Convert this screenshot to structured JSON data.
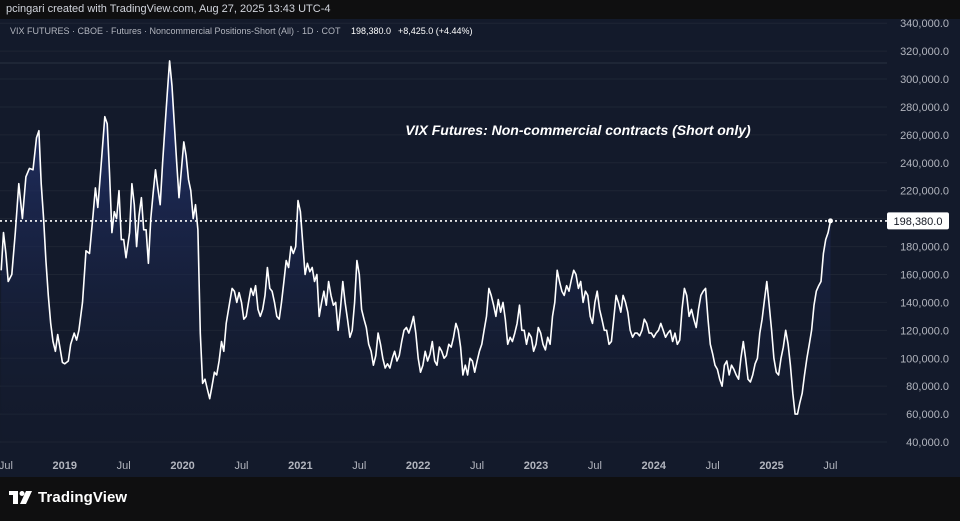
{
  "header": {
    "attribution": "pcingari created with TradingView.com, Aug 27, 2025 13:43 UTC-4"
  },
  "legend": {
    "symbol": "VIX FUTURES · CBOE · Futures · Noncommercial Positions-Short (All) · 1D · COT",
    "last_value": "198,380.0",
    "change": "+8,425.0 (+4.44%)"
  },
  "annotation": "VIX Futures: Non-commercial contracts (Short only)",
  "price_label": "198,380.0",
  "brand": "TradingView",
  "colors": {
    "background": "#131a2b",
    "line": "#ffffff",
    "area_top": "#1e2d63",
    "text_muted": "#b2b5be",
    "grid": "#1e2534"
  },
  "chart_data": {
    "type": "area",
    "title": "VIX Futures: Non-commercial contracts (Short only)",
    "series_name": "VIX FUTURES · CBOE · Futures · Noncommercial Positions-Short (All)",
    "ylim": [
      35000,
      343000
    ],
    "y_ticks": [
      "40,000.0",
      "60,000.0",
      "80,000.0",
      "100,000.0",
      "120,000.0",
      "140,000.0",
      "160,000.0",
      "180,000.0",
      "200,000.0",
      "220,000.0",
      "240,000.0",
      "260,000.0",
      "280,000.0",
      "300,000.0",
      "320,000.0",
      "340,000.0"
    ],
    "y_tick_values": [
      40000,
      60000,
      80000,
      100000,
      120000,
      140000,
      160000,
      180000,
      200000,
      220000,
      240000,
      260000,
      280000,
      300000,
      320000,
      340000
    ],
    "x_ticks": [
      "Jul",
      "2019",
      "Jul",
      "2020",
      "Jul",
      "2021",
      "Jul",
      "2022",
      "Jul",
      "2023",
      "Jul",
      "2024",
      "Jul",
      "2025",
      "Jul"
    ],
    "x_tick_dates": [
      2018.5,
      2019.0,
      2019.5,
      2020.0,
      2020.5,
      2021.0,
      2021.5,
      2022.0,
      2022.5,
      2023.0,
      2023.5,
      2024.0,
      2024.5,
      2025.0,
      2025.5
    ],
    "x_range": [
      2018.45,
      2025.98
    ],
    "last_value": 198380,
    "points": [
      [
        2018.46,
        163000
      ],
      [
        2018.48,
        190000
      ],
      [
        2018.5,
        175000
      ],
      [
        2018.52,
        155000
      ],
      [
        2018.55,
        160000
      ],
      [
        2018.58,
        190000
      ],
      [
        2018.61,
        225000
      ],
      [
        2018.64,
        200000
      ],
      [
        2018.67,
        230000
      ],
      [
        2018.7,
        236000
      ],
      [
        2018.73,
        235000
      ],
      [
        2018.76,
        258000
      ],
      [
        2018.78,
        263000
      ],
      [
        2018.8,
        225000
      ],
      [
        2018.82,
        200000
      ],
      [
        2018.84,
        170000
      ],
      [
        2018.86,
        145000
      ],
      [
        2018.88,
        125000
      ],
      [
        2018.9,
        112000
      ],
      [
        2018.92,
        105000
      ],
      [
        2018.94,
        117000
      ],
      [
        2018.96,
        107000
      ],
      [
        2018.98,
        97000
      ],
      [
        2019.0,
        96000
      ],
      [
        2019.03,
        98000
      ],
      [
        2019.05,
        110000
      ],
      [
        2019.08,
        118000
      ],
      [
        2019.1,
        113000
      ],
      [
        2019.12,
        120000
      ],
      [
        2019.15,
        140000
      ],
      [
        2019.18,
        177000
      ],
      [
        2019.21,
        175000
      ],
      [
        2019.24,
        203000
      ],
      [
        2019.26,
        222000
      ],
      [
        2019.28,
        208000
      ],
      [
        2019.31,
        240000
      ],
      [
        2019.34,
        273000
      ],
      [
        2019.36,
        268000
      ],
      [
        2019.38,
        233000
      ],
      [
        2019.4,
        190000
      ],
      [
        2019.42,
        205000
      ],
      [
        2019.44,
        200000
      ],
      [
        2019.46,
        220000
      ],
      [
        2019.48,
        185000
      ],
      [
        2019.5,
        185000
      ],
      [
        2019.52,
        172000
      ],
      [
        2019.55,
        190000
      ],
      [
        2019.57,
        225000
      ],
      [
        2019.59,
        210000
      ],
      [
        2019.61,
        180000
      ],
      [
        2019.63,
        202000
      ],
      [
        2019.65,
        215000
      ],
      [
        2019.67,
        192000
      ],
      [
        2019.69,
        192000
      ],
      [
        2019.71,
        168000
      ],
      [
        2019.73,
        200000
      ],
      [
        2019.75,
        218000
      ],
      [
        2019.77,
        235000
      ],
      [
        2019.79,
        222000
      ],
      [
        2019.81,
        210000
      ],
      [
        2019.83,
        240000
      ],
      [
        2019.85,
        265000
      ],
      [
        2019.87,
        290000
      ],
      [
        2019.89,
        313000
      ],
      [
        2019.91,
        295000
      ],
      [
        2019.93,
        268000
      ],
      [
        2019.95,
        240000
      ],
      [
        2019.97,
        215000
      ],
      [
        2019.99,
        235000
      ],
      [
        2020.01,
        255000
      ],
      [
        2020.03,
        245000
      ],
      [
        2020.05,
        228000
      ],
      [
        2020.07,
        220000
      ],
      [
        2020.09,
        200000
      ],
      [
        2020.11,
        210000
      ],
      [
        2020.13,
        192000
      ],
      [
        2020.15,
        118000
      ],
      [
        2020.17,
        82000
      ],
      [
        2020.19,
        85000
      ],
      [
        2020.21,
        78000
      ],
      [
        2020.23,
        71000
      ],
      [
        2020.25,
        80000
      ],
      [
        2020.27,
        90000
      ],
      [
        2020.29,
        88000
      ],
      [
        2020.31,
        98000
      ],
      [
        2020.33,
        112000
      ],
      [
        2020.35,
        105000
      ],
      [
        2020.37,
        125000
      ],
      [
        2020.4,
        140000
      ],
      [
        2020.42,
        150000
      ],
      [
        2020.44,
        148000
      ],
      [
        2020.46,
        140000
      ],
      [
        2020.48,
        147000
      ],
      [
        2020.5,
        140000
      ],
      [
        2020.52,
        128000
      ],
      [
        2020.54,
        130000
      ],
      [
        2020.56,
        140000
      ],
      [
        2020.58,
        150000
      ],
      [
        2020.6,
        145000
      ],
      [
        2020.62,
        152000
      ],
      [
        2020.64,
        135000
      ],
      [
        2020.66,
        130000
      ],
      [
        2020.68,
        135000
      ],
      [
        2020.7,
        145000
      ],
      [
        2020.72,
        165000
      ],
      [
        2020.74,
        150000
      ],
      [
        2020.76,
        148000
      ],
      [
        2020.78,
        140000
      ],
      [
        2020.8,
        130000
      ],
      [
        2020.82,
        128000
      ],
      [
        2020.84,
        140000
      ],
      [
        2020.86,
        155000
      ],
      [
        2020.88,
        170000
      ],
      [
        2020.9,
        165000
      ],
      [
        2020.92,
        180000
      ],
      [
        2020.94,
        175000
      ],
      [
        2020.96,
        180000
      ],
      [
        2020.98,
        213000
      ],
      [
        2021.0,
        205000
      ],
      [
        2021.02,
        183000
      ],
      [
        2021.04,
        160000
      ],
      [
        2021.06,
        168000
      ],
      [
        2021.08,
        162000
      ],
      [
        2021.1,
        165000
      ],
      [
        2021.12,
        155000
      ],
      [
        2021.14,
        160000
      ],
      [
        2021.16,
        130000
      ],
      [
        2021.18,
        140000
      ],
      [
        2021.2,
        148000
      ],
      [
        2021.22,
        138000
      ],
      [
        2021.24,
        155000
      ],
      [
        2021.26,
        145000
      ],
      [
        2021.28,
        138000
      ],
      [
        2021.3,
        140000
      ],
      [
        2021.32,
        120000
      ],
      [
        2021.34,
        135000
      ],
      [
        2021.36,
        155000
      ],
      [
        2021.38,
        140000
      ],
      [
        2021.4,
        128000
      ],
      [
        2021.42,
        115000
      ],
      [
        2021.44,
        120000
      ],
      [
        2021.46,
        140000
      ],
      [
        2021.48,
        170000
      ],
      [
        2021.5,
        160000
      ],
      [
        2021.52,
        135000
      ],
      [
        2021.54,
        128000
      ],
      [
        2021.56,
        122000
      ],
      [
        2021.58,
        110000
      ],
      [
        2021.6,
        105000
      ],
      [
        2021.62,
        95000
      ],
      [
        2021.64,
        102000
      ],
      [
        2021.66,
        118000
      ],
      [
        2021.68,
        110000
      ],
      [
        2021.7,
        100000
      ],
      [
        2021.72,
        93000
      ],
      [
        2021.74,
        96000
      ],
      [
        2021.76,
        93000
      ],
      [
        2021.78,
        100000
      ],
      [
        2021.8,
        105000
      ],
      [
        2021.82,
        98000
      ],
      [
        2021.84,
        102000
      ],
      [
        2021.86,
        112000
      ],
      [
        2021.88,
        120000
      ],
      [
        2021.9,
        122000
      ],
      [
        2021.92,
        118000
      ],
      [
        2021.94,
        123000
      ],
      [
        2021.96,
        130000
      ],
      [
        2021.98,
        118000
      ],
      [
        2022.0,
        100000
      ],
      [
        2022.02,
        90000
      ],
      [
        2022.04,
        95000
      ],
      [
        2022.06,
        105000
      ],
      [
        2022.08,
        98000
      ],
      [
        2022.1,
        103000
      ],
      [
        2022.12,
        112000
      ],
      [
        2022.14,
        98000
      ],
      [
        2022.16,
        95000
      ],
      [
        2022.18,
        108000
      ],
      [
        2022.2,
        105000
      ],
      [
        2022.22,
        100000
      ],
      [
        2022.24,
        102000
      ],
      [
        2022.26,
        110000
      ],
      [
        2022.28,
        108000
      ],
      [
        2022.3,
        115000
      ],
      [
        2022.32,
        125000
      ],
      [
        2022.34,
        120000
      ],
      [
        2022.36,
        108000
      ],
      [
        2022.38,
        88000
      ],
      [
        2022.4,
        95000
      ],
      [
        2022.42,
        88000
      ],
      [
        2022.44,
        100000
      ],
      [
        2022.46,
        98000
      ],
      [
        2022.48,
        90000
      ],
      [
        2022.5,
        98000
      ],
      [
        2022.52,
        105000
      ],
      [
        2022.54,
        110000
      ],
      [
        2022.56,
        120000
      ],
      [
        2022.58,
        130000
      ],
      [
        2022.6,
        150000
      ],
      [
        2022.62,
        145000
      ],
      [
        2022.64,
        138000
      ],
      [
        2022.66,
        130000
      ],
      [
        2022.68,
        142000
      ],
      [
        2022.7,
        133000
      ],
      [
        2022.72,
        140000
      ],
      [
        2022.74,
        128000
      ],
      [
        2022.76,
        110000
      ],
      [
        2022.78,
        115000
      ],
      [
        2022.8,
        112000
      ],
      [
        2022.82,
        118000
      ],
      [
        2022.84,
        125000
      ],
      [
        2022.86,
        138000
      ],
      [
        2022.88,
        120000
      ],
      [
        2022.9,
        120000
      ],
      [
        2022.92,
        110000
      ],
      [
        2022.94,
        118000
      ],
      [
        2022.96,
        115000
      ],
      [
        2022.98,
        105000
      ],
      [
        2023.0,
        110000
      ],
      [
        2023.02,
        122000
      ],
      [
        2023.04,
        118000
      ],
      [
        2023.06,
        110000
      ],
      [
        2023.08,
        106000
      ],
      [
        2023.1,
        115000
      ],
      [
        2023.12,
        110000
      ],
      [
        2023.14,
        130000
      ],
      [
        2023.16,
        140000
      ],
      [
        2023.18,
        163000
      ],
      [
        2023.2,
        155000
      ],
      [
        2023.22,
        148000
      ],
      [
        2023.24,
        145000
      ],
      [
        2023.26,
        152000
      ],
      [
        2023.28,
        148000
      ],
      [
        2023.3,
        156000
      ],
      [
        2023.32,
        163000
      ],
      [
        2023.34,
        160000
      ],
      [
        2023.36,
        150000
      ],
      [
        2023.38,
        155000
      ],
      [
        2023.4,
        140000
      ],
      [
        2023.42,
        148000
      ],
      [
        2023.44,
        145000
      ],
      [
        2023.46,
        130000
      ],
      [
        2023.48,
        125000
      ],
      [
        2023.5,
        140000
      ],
      [
        2023.52,
        148000
      ],
      [
        2023.54,
        135000
      ],
      [
        2023.56,
        128000
      ],
      [
        2023.58,
        120000
      ],
      [
        2023.6,
        120000
      ],
      [
        2023.62,
        110000
      ],
      [
        2023.64,
        112000
      ],
      [
        2023.66,
        128000
      ],
      [
        2023.68,
        145000
      ],
      [
        2023.7,
        140000
      ],
      [
        2023.72,
        133000
      ],
      [
        2023.74,
        145000
      ],
      [
        2023.76,
        140000
      ],
      [
        2023.78,
        133000
      ],
      [
        2023.8,
        120000
      ],
      [
        2023.82,
        115000
      ],
      [
        2023.84,
        118000
      ],
      [
        2023.86,
        118000
      ],
      [
        2023.88,
        116000
      ],
      [
        2023.9,
        120000
      ],
      [
        2023.92,
        128000
      ],
      [
        2023.94,
        125000
      ],
      [
        2023.96,
        118000
      ],
      [
        2023.98,
        118000
      ],
      [
        2024.0,
        115000
      ],
      [
        2024.02,
        118000
      ],
      [
        2024.04,
        120000
      ],
      [
        2024.06,
        125000
      ],
      [
        2024.08,
        120000
      ],
      [
        2024.1,
        115000
      ],
      [
        2024.12,
        118000
      ],
      [
        2024.14,
        120000
      ],
      [
        2024.16,
        112000
      ],
      [
        2024.18,
        118000
      ],
      [
        2024.2,
        110000
      ],
      [
        2024.22,
        113000
      ],
      [
        2024.24,
        135000
      ],
      [
        2024.26,
        150000
      ],
      [
        2024.28,
        145000
      ],
      [
        2024.3,
        130000
      ],
      [
        2024.32,
        135000
      ],
      [
        2024.34,
        128000
      ],
      [
        2024.36,
        122000
      ],
      [
        2024.38,
        135000
      ],
      [
        2024.4,
        145000
      ],
      [
        2024.42,
        148000
      ],
      [
        2024.44,
        150000
      ],
      [
        2024.46,
        128000
      ],
      [
        2024.48,
        110000
      ],
      [
        2024.5,
        103000
      ],
      [
        2024.52,
        95000
      ],
      [
        2024.54,
        92000
      ],
      [
        2024.56,
        85000
      ],
      [
        2024.58,
        80000
      ],
      [
        2024.6,
        95000
      ],
      [
        2024.62,
        98000
      ],
      [
        2024.64,
        88000
      ],
      [
        2024.66,
        95000
      ],
      [
        2024.68,
        92000
      ],
      [
        2024.7,
        88000
      ],
      [
        2024.72,
        85000
      ],
      [
        2024.74,
        100000
      ],
      [
        2024.76,
        112000
      ],
      [
        2024.78,
        100000
      ],
      [
        2024.8,
        85000
      ],
      [
        2024.82,
        83000
      ],
      [
        2024.84,
        88000
      ],
      [
        2024.86,
        96000
      ],
      [
        2024.88,
        100000
      ],
      [
        2024.9,
        118000
      ],
      [
        2024.92,
        128000
      ],
      [
        2024.94,
        142000
      ],
      [
        2024.96,
        155000
      ],
      [
        2024.98,
        138000
      ],
      [
        2025.0,
        120000
      ],
      [
        2025.02,
        100000
      ],
      [
        2025.04,
        90000
      ],
      [
        2025.06,
        88000
      ],
      [
        2025.08,
        100000
      ],
      [
        2025.1,
        108000
      ],
      [
        2025.12,
        120000
      ],
      [
        2025.14,
        110000
      ],
      [
        2025.16,
        95000
      ],
      [
        2025.18,
        75000
      ],
      [
        2025.2,
        60000
      ],
      [
        2025.22,
        60000
      ],
      [
        2025.24,
        68000
      ],
      [
        2025.26,
        75000
      ],
      [
        2025.28,
        88000
      ],
      [
        2025.3,
        100000
      ],
      [
        2025.32,
        110000
      ],
      [
        2025.34,
        120000
      ],
      [
        2025.36,
        138000
      ],
      [
        2025.38,
        148000
      ],
      [
        2025.4,
        152000
      ],
      [
        2025.42,
        155000
      ],
      [
        2025.44,
        175000
      ],
      [
        2025.46,
        185000
      ],
      [
        2025.48,
        190000
      ],
      [
        2025.5,
        198380
      ]
    ]
  }
}
